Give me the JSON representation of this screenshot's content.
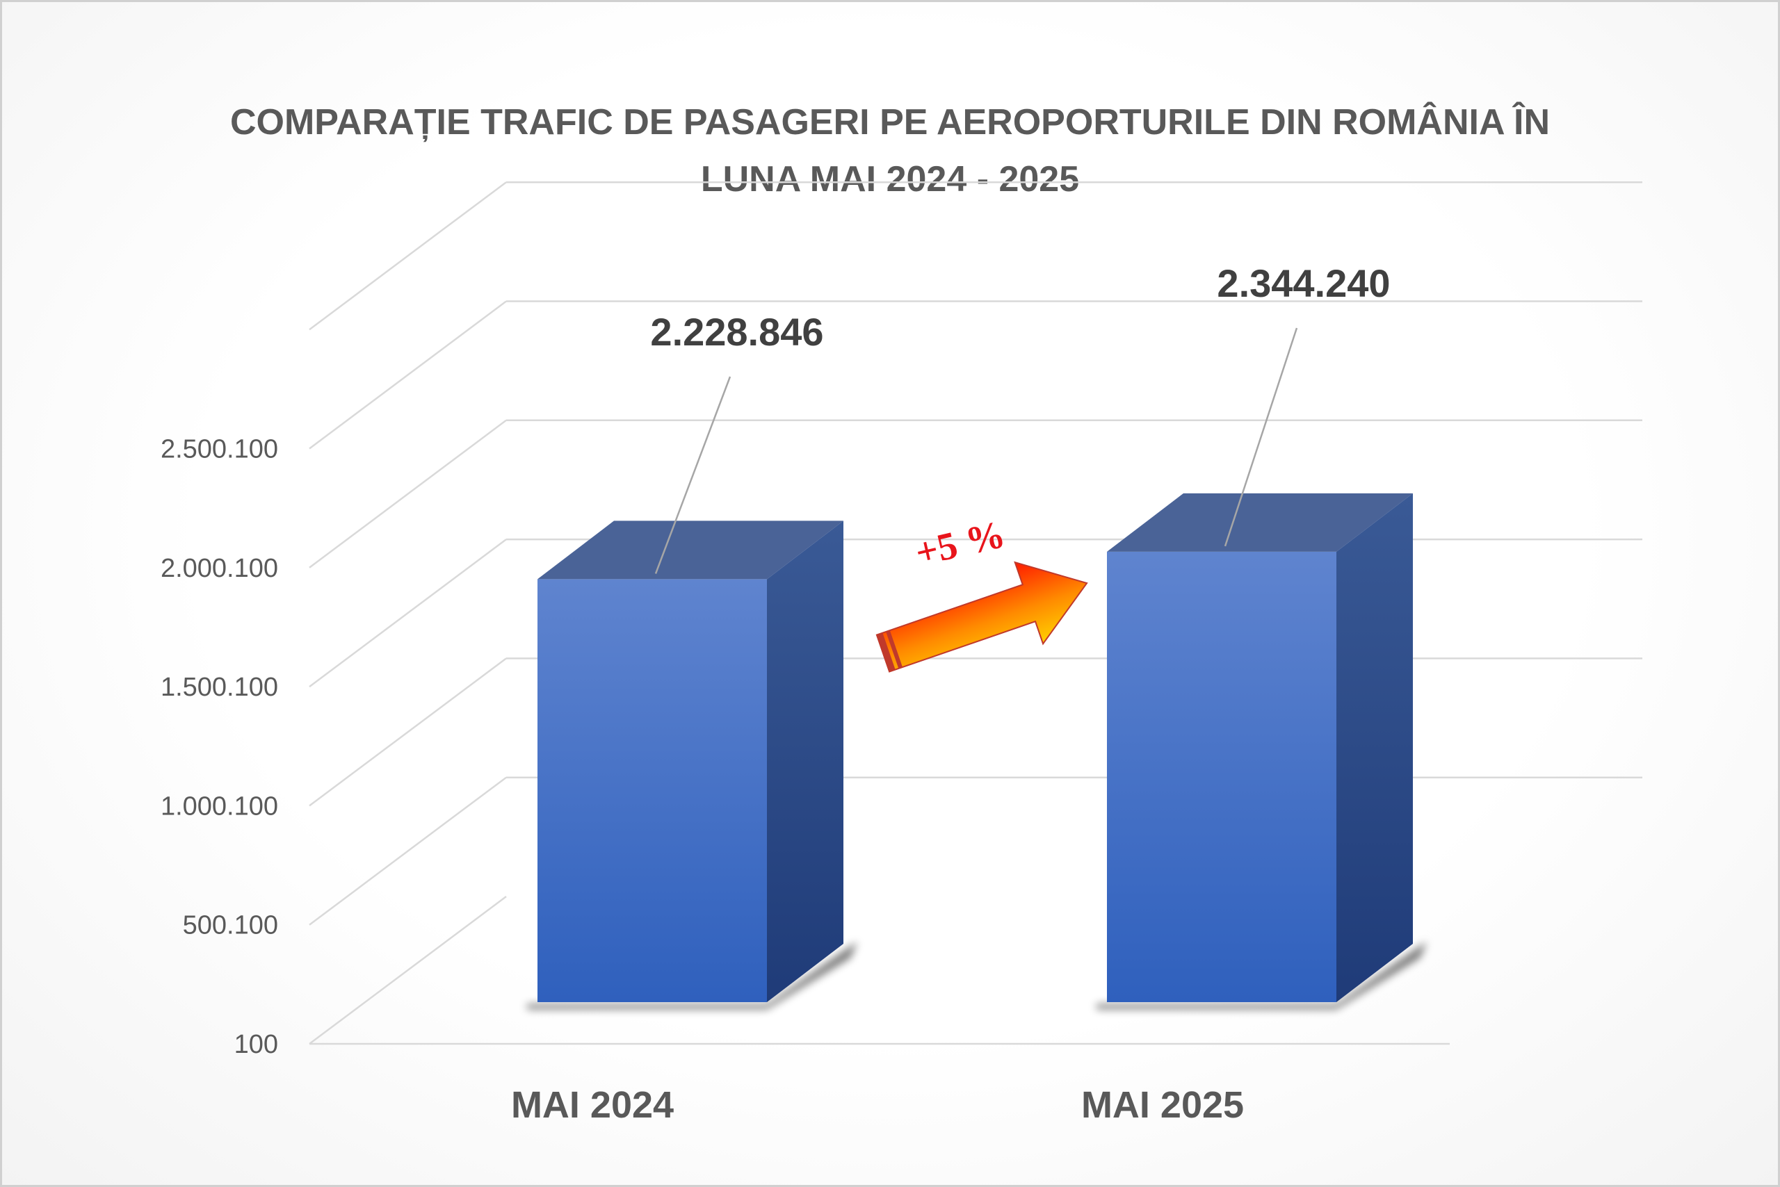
{
  "chart_data": {
    "type": "bar",
    "title": "COMPARAȚIE TRAFIC DE PASAGERI PE AEROPORTURILE DIN ROMÂNIA ÎN LUNA MAI 2024 - 2025",
    "categories": [
      "MAI 2024",
      "MAI 2025"
    ],
    "values": [
      2228846,
      2344240
    ],
    "data_labels": [
      "2.228.846",
      "2.344.240"
    ],
    "y_ticks": [
      100,
      500100,
      1000100,
      1500100,
      2000100,
      2500100
    ],
    "y_tick_labels": [
      "100",
      "500.100",
      "1.000.100",
      "1.500.100",
      "2.000.100",
      "2.500.100"
    ],
    "ylim": [
      100,
      3000100
    ],
    "grid": true,
    "legend": "none",
    "annotation": {
      "text": "+5 %"
    },
    "colors": {
      "bar_front_top": "#5f84cf",
      "bar_front_bottom": "#2f60bd",
      "bar_side": "#2c4f95",
      "bar_top": "#4a6397",
      "gridline": "#d9d9d9",
      "text": "#595959",
      "arrow_red": "#ff1a00",
      "arrow_yellow": "#ffd000"
    }
  }
}
